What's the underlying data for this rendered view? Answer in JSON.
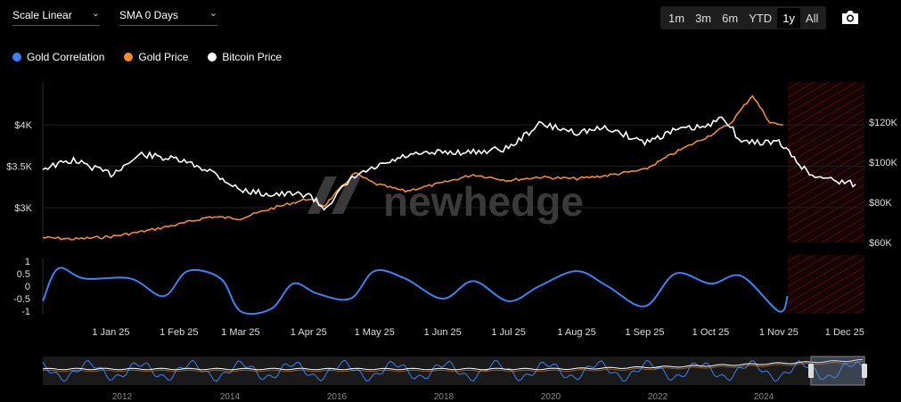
{
  "controls": {
    "scale_label": "Scale Linear",
    "sma_label": "SMA 0 Days",
    "ranges": [
      "1m",
      "3m",
      "6m",
      "YTD",
      "1y",
      "All"
    ],
    "active_range": "1y",
    "camera_icon": "camera-icon",
    "chevron_icon": "chevron-down-icon"
  },
  "watermark": "newhedge",
  "colors": {
    "correlation": "#3b82f6",
    "gold": "#f28b2c",
    "bitcoin": "#ffffff",
    "forecast_hatch": "#5a1010"
  },
  "chart_data": [
    {
      "type": "line",
      "series": [
        {
          "name": "Gold Price",
          "axis": "left",
          "x": [
            "2024-12-01",
            "2024-12-15",
            "2025-01-01",
            "2025-01-15",
            "2025-02-01",
            "2025-02-15",
            "2025-03-01",
            "2025-03-15",
            "2025-04-01",
            "2025-04-08",
            "2025-04-22",
            "2025-05-01",
            "2025-05-15",
            "2025-06-01",
            "2025-06-15",
            "2025-07-01",
            "2025-07-15",
            "2025-08-01",
            "2025-08-15",
            "2025-09-01",
            "2025-09-15",
            "2025-10-01",
            "2025-10-10",
            "2025-10-20",
            "2025-10-28",
            "2025-11-03"
          ],
          "values": [
            2640,
            2620,
            2650,
            2710,
            2800,
            2890,
            2870,
            2990,
            3110,
            3020,
            3420,
            3290,
            3200,
            3300,
            3400,
            3330,
            3370,
            3350,
            3390,
            3460,
            3670,
            3880,
            4020,
            4360,
            4030,
            4000
          ]
        },
        {
          "name": "Bitcoin Price",
          "axis": "right",
          "x": [
            "2024-12-01",
            "2024-12-15",
            "2025-01-01",
            "2025-01-15",
            "2025-02-01",
            "2025-02-15",
            "2025-03-01",
            "2025-03-15",
            "2025-04-01",
            "2025-04-08",
            "2025-04-22",
            "2025-05-01",
            "2025-05-15",
            "2025-06-01",
            "2025-06-15",
            "2025-07-01",
            "2025-07-15",
            "2025-08-01",
            "2025-08-15",
            "2025-09-01",
            "2025-09-15",
            "2025-10-01",
            "2025-10-06",
            "2025-10-15",
            "2025-11-01",
            "2025-11-15",
            "2025-12-01",
            "2025-12-06"
          ],
          "values": [
            97000,
            101000,
            94000,
            104000,
            101000,
            96000,
            86000,
            84000,
            84000,
            77000,
            93000,
            97000,
            103000,
            105000,
            105000,
            107000,
            119000,
            115000,
            117000,
            110000,
            116000,
            118000,
            124000,
            110000,
            110000,
            94000,
            90000,
            89000
          ]
        },
        {
          "name": "Gold Correlation",
          "axis": "correlation",
          "x": [
            "2024-12-01",
            "2024-12-08",
            "2024-12-20",
            "2025-01-10",
            "2025-01-25",
            "2025-02-05",
            "2025-02-20",
            "2025-03-01",
            "2025-03-15",
            "2025-03-25",
            "2025-04-05",
            "2025-04-20",
            "2025-05-01",
            "2025-05-15",
            "2025-06-01",
            "2025-06-15",
            "2025-07-01",
            "2025-07-15",
            "2025-08-01",
            "2025-08-15",
            "2025-09-01",
            "2025-09-15",
            "2025-10-01",
            "2025-10-15",
            "2025-11-01",
            "2025-11-05"
          ],
          "values": [
            -0.6,
            0.7,
            0.3,
            0.3,
            -0.4,
            0.6,
            0.3,
            -1.0,
            -0.9,
            0.1,
            -0.3,
            -0.5,
            0.6,
            0.3,
            -0.5,
            0.2,
            -0.6,
            0.0,
            0.6,
            0.0,
            -0.8,
            0.5,
            0.1,
            0.4,
            -1.0,
            -0.4
          ]
        }
      ],
      "left_axis": {
        "ticks": [
          "$3K",
          "$3.5K",
          "$4K"
        ],
        "values": [
          3000,
          3500,
          4000
        ],
        "range": [
          2580,
          4520
        ]
      },
      "right_axis": {
        "ticks": [
          "$60K",
          "$80K",
          "$100K",
          "$120K"
        ],
        "values": [
          60000,
          80000,
          100000,
          120000
        ],
        "range": [
          60000,
          140000
        ]
      },
      "correlation_axis": {
        "ticks": [
          "1",
          "0.5",
          "0",
          "-0.5",
          "-1"
        ],
        "values": [
          1,
          0.5,
          0,
          -0.5,
          -1
        ],
        "range": [
          -1.1,
          1.1
        ]
      },
      "x_axis": {
        "range": [
          "2024-12-01",
          "2025-12-10"
        ],
        "ticks": [
          "1 Jan 25",
          "1 Feb 25",
          "1 Mar 25",
          "1 Apr 25",
          "1 May 25",
          "1 Jun 25",
          "1 Jul 25",
          "1 Aug 25",
          "1 Sep 25",
          "1 Oct 25",
          "1 Nov 25",
          "1 Dec 25"
        ],
        "tick_dates": [
          "2025-01-01",
          "2025-02-01",
          "2025-03-01",
          "2025-04-01",
          "2025-05-01",
          "2025-06-01",
          "2025-07-01",
          "2025-08-01",
          "2025-09-01",
          "2025-10-01",
          "2025-11-01",
          "2025-12-01"
        ]
      },
      "forecast_region_start": "2025-11-05",
      "legend": [
        {
          "name": "Gold Correlation",
          "color": "#3b82f6"
        },
        {
          "name": "Gold Price",
          "color": "#f28b2c"
        },
        {
          "name": "Bitcoin Price",
          "color": "#ffffff"
        }
      ]
    },
    {
      "type": "line",
      "role": "navigator",
      "x_axis": {
        "ticks": [
          "2012",
          "2014",
          "2016",
          "2018",
          "2020",
          "2022",
          "2024"
        ]
      }
    }
  ]
}
